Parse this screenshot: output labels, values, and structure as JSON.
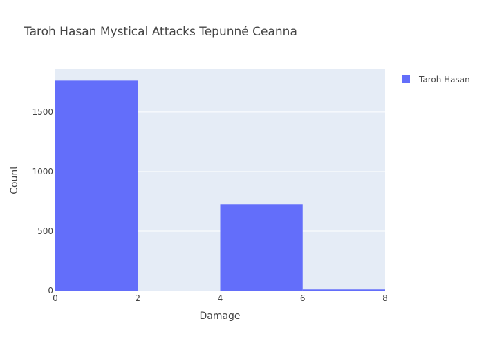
{
  "chart_data": {
    "type": "bar",
    "title": "Taroh Hasan Mystical Attacks Tepunné Ceanna",
    "xlabel": "Damage",
    "ylabel": "Count",
    "xlim": [
      0,
      8
    ],
    "ylim": [
      0,
      1860
    ],
    "x_ticks": [
      0,
      2,
      4,
      6,
      8
    ],
    "y_ticks": [
      0,
      500,
      1000,
      1500
    ],
    "bins": [
      {
        "start": 0,
        "end": 2,
        "count": 1765
      },
      {
        "start": 2,
        "end": 4,
        "count": 0
      },
      {
        "start": 4,
        "end": 6,
        "count": 725
      },
      {
        "start": 6,
        "end": 8,
        "count": 10
      }
    ],
    "series": [
      {
        "name": "Taroh Hasan",
        "color": "#636efa"
      }
    ],
    "plot_background": "#e5ecf6",
    "grid": true,
    "legend_position": "top-right"
  }
}
